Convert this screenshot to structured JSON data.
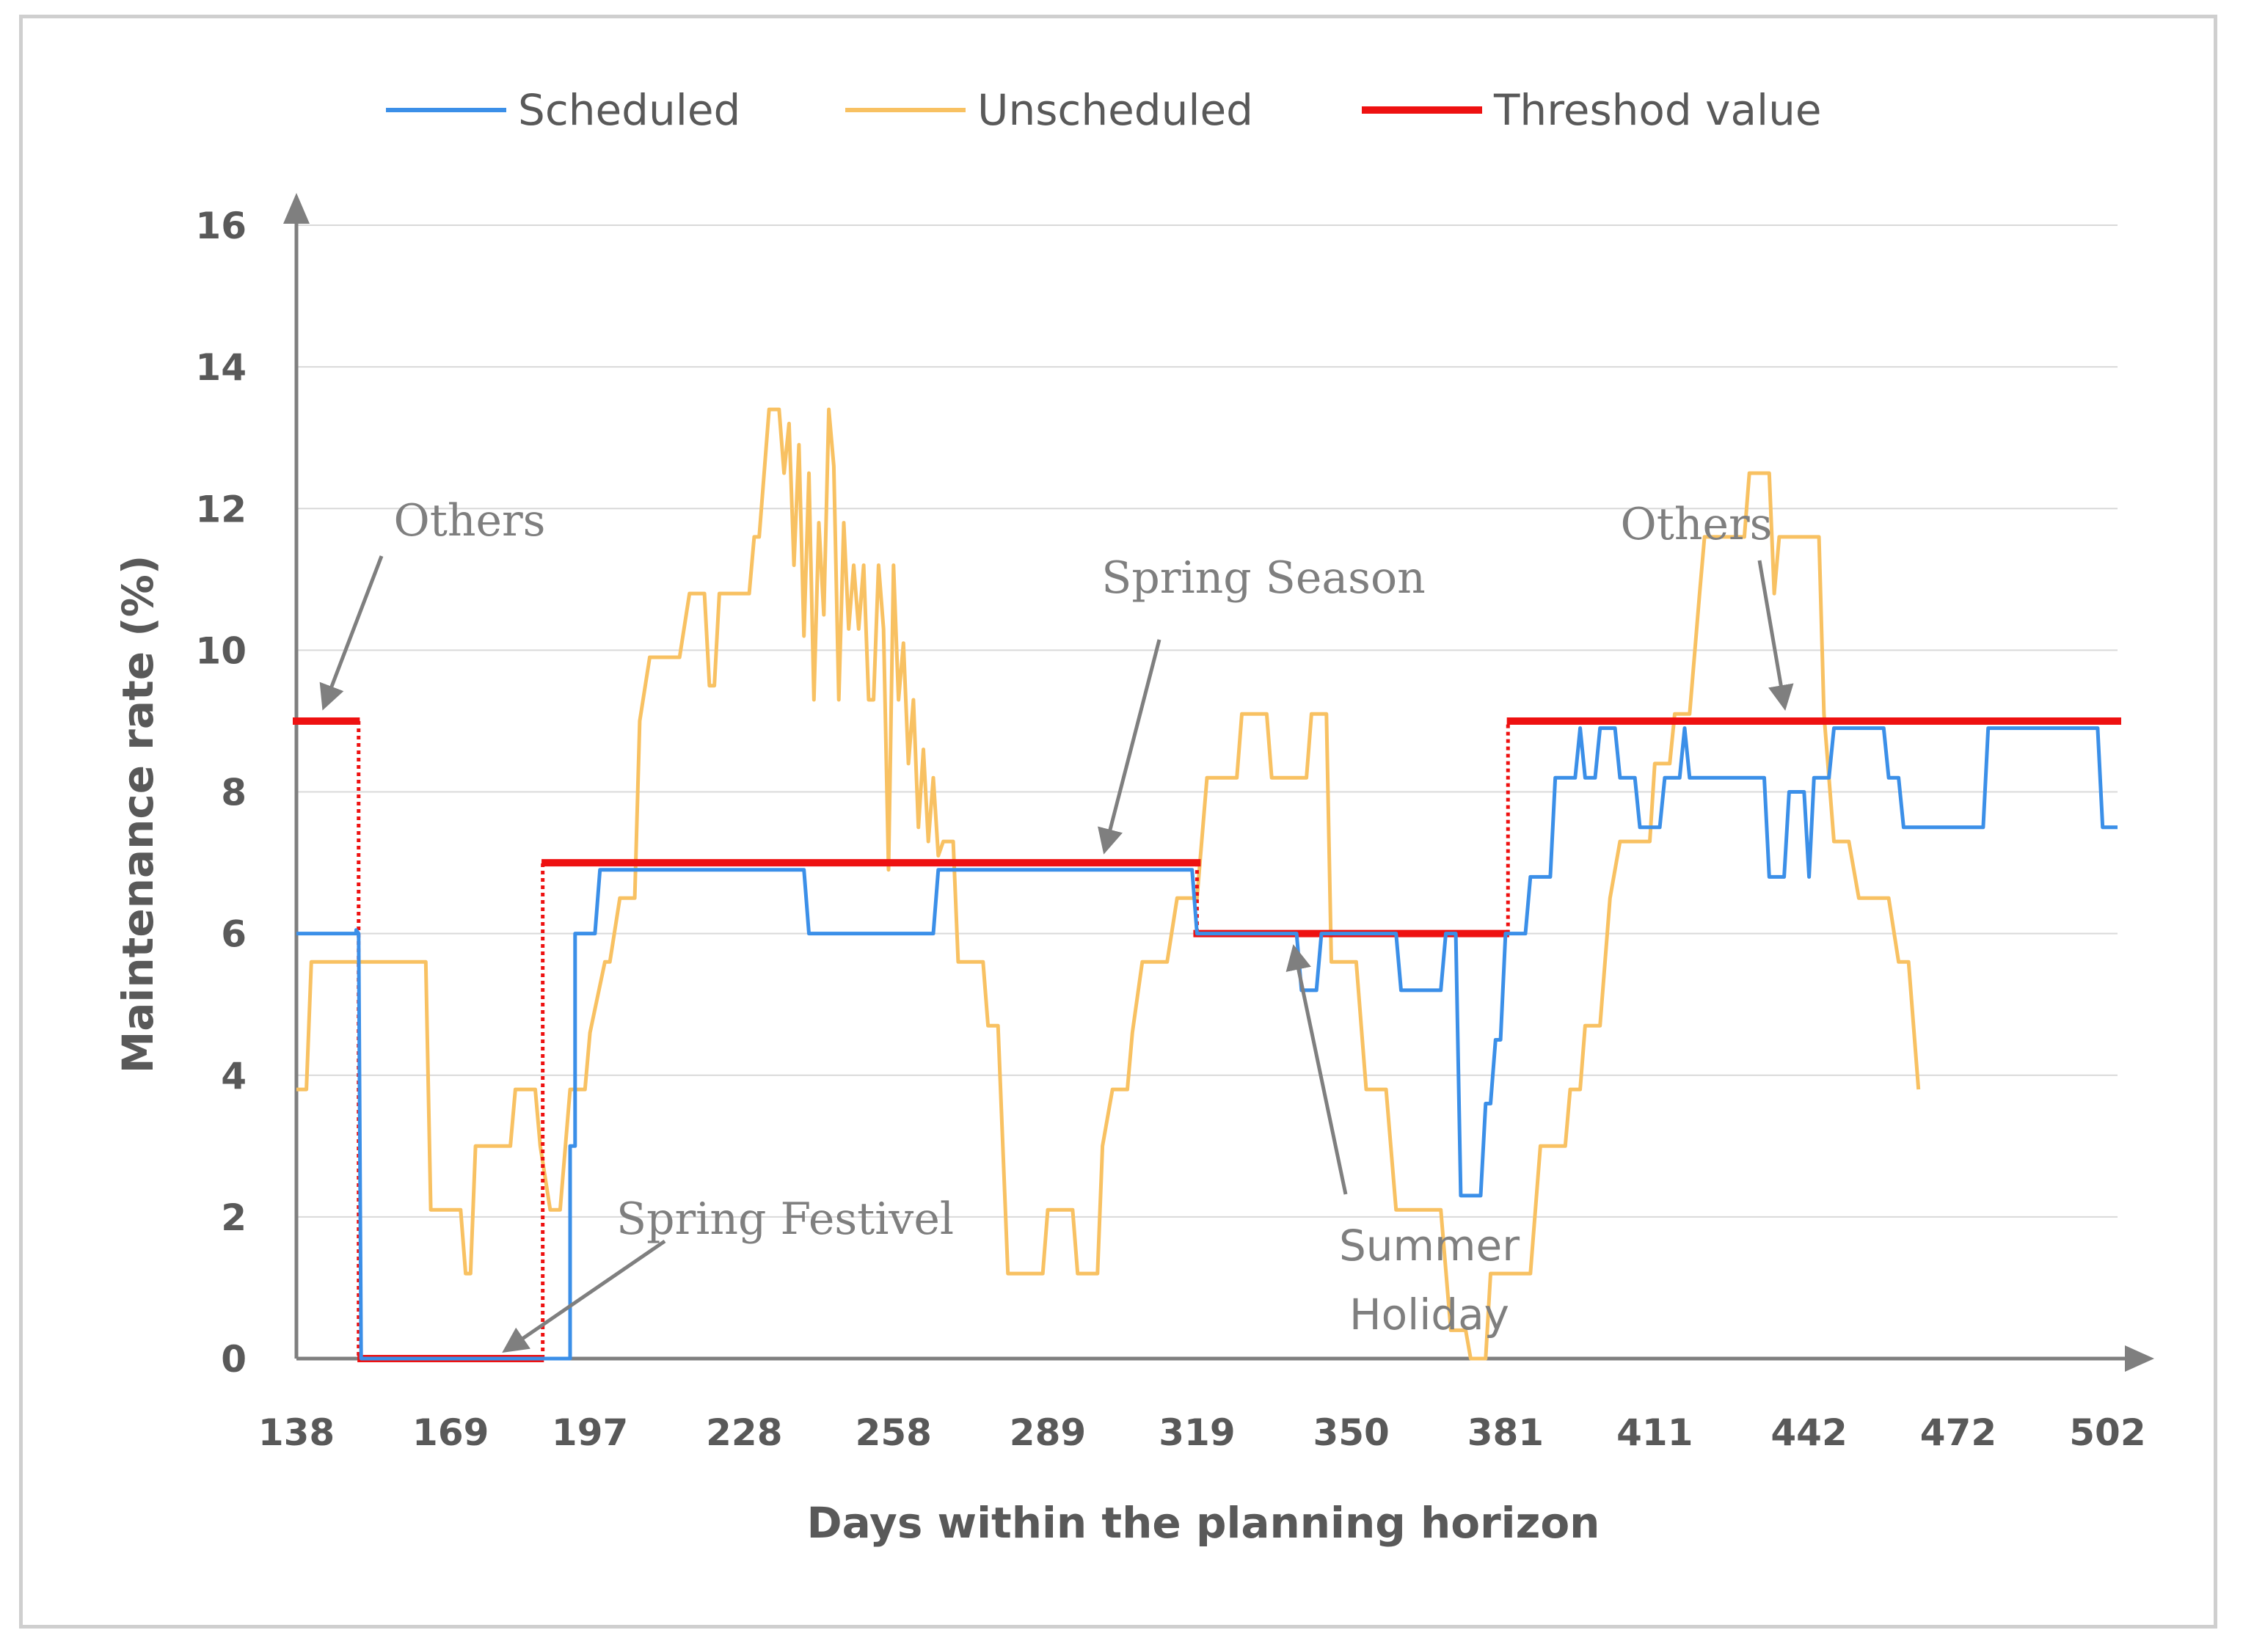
{
  "colors": {
    "scheduled": "#3b8fe8",
    "unscheduled": "#f8c162",
    "threshold": "#ee1111",
    "threshold_drop": "#ee1111",
    "axis": "#7f7f7f",
    "grid": "#d9d9d9",
    "text": "#595959",
    "annotation": "#7f7f7f"
  },
  "chart_data": {
    "type": "line",
    "xlabel": "Days within the planning horizon",
    "ylabel": "Maintenance rate (%)",
    "xlim": [
      138,
      504
    ],
    "ylim": [
      0,
      16
    ],
    "x_ticks": [
      "138",
      "169",
      "197",
      "228",
      "258",
      "289",
      "319",
      "350",
      "381",
      "411",
      "442",
      "472",
      "502"
    ],
    "y_ticks": [
      "0",
      "2",
      "4",
      "6",
      "8",
      "10",
      "12",
      "14",
      "16"
    ],
    "grid": "horizontal",
    "legend_position": "top",
    "series": [
      {
        "name": "Scheduled",
        "color_key": "scheduled",
        "points": [
          [
            138,
            6.0
          ],
          [
            150,
            6.0
          ],
          [
            150,
            6.05
          ],
          [
            150.5,
            6.0
          ],
          [
            151,
            0
          ],
          [
            193,
            0
          ],
          [
            193,
            3.0
          ],
          [
            194,
            3.0
          ],
          [
            194,
            6.0
          ],
          [
            198,
            6.0
          ],
          [
            199,
            6.9
          ],
          [
            240,
            6.9
          ],
          [
            241,
            6.0
          ],
          [
            266,
            6.0
          ],
          [
            267,
            6.9
          ],
          [
            318,
            6.9
          ],
          [
            319,
            6.0
          ],
          [
            339,
            6.0
          ],
          [
            340,
            5.2
          ],
          [
            343,
            5.2
          ],
          [
            344,
            6.0
          ],
          [
            359,
            6.0
          ],
          [
            360,
            5.2
          ],
          [
            368,
            5.2
          ],
          [
            369,
            6.0
          ],
          [
            371,
            6.0
          ],
          [
            372,
            2.3
          ],
          [
            376,
            2.3
          ],
          [
            377,
            3.6
          ],
          [
            378,
            3.6
          ],
          [
            379,
            4.5
          ],
          [
            380,
            4.5
          ],
          [
            381,
            6.0
          ],
          [
            385,
            6.0
          ],
          [
            386,
            6.8
          ],
          [
            390,
            6.8
          ],
          [
            391,
            8.2
          ],
          [
            395,
            8.2
          ],
          [
            396,
            8.9
          ],
          [
            397,
            8.2
          ],
          [
            399,
            8.2
          ],
          [
            400,
            8.9
          ],
          [
            403,
            8.9
          ],
          [
            404,
            8.2
          ],
          [
            407,
            8.2
          ],
          [
            408,
            7.5
          ],
          [
            412,
            7.5
          ],
          [
            413,
            8.2
          ],
          [
            416,
            8.2
          ],
          [
            417,
            8.9
          ],
          [
            418,
            8.2
          ],
          [
            433,
            8.2
          ],
          [
            434,
            6.8
          ],
          [
            437,
            6.8
          ],
          [
            438,
            8.0
          ],
          [
            441,
            8.0
          ],
          [
            442,
            6.8
          ],
          [
            443,
            8.2
          ],
          [
            446,
            8.2
          ],
          [
            447,
            8.9
          ],
          [
            457,
            8.9
          ],
          [
            458,
            8.2
          ],
          [
            460,
            8.2
          ],
          [
            461,
            7.5
          ],
          [
            477,
            7.5
          ],
          [
            478,
            8.9
          ],
          [
            500,
            8.9
          ],
          [
            501,
            7.5
          ],
          [
            504,
            7.5
          ]
        ]
      },
      {
        "name": "Unscheduled",
        "color_key": "unscheduled",
        "points": [
          [
            138,
            3.8
          ],
          [
            140,
            3.8
          ],
          [
            141,
            5.6
          ],
          [
            164,
            5.6
          ],
          [
            165,
            2.1
          ],
          [
            171,
            2.1
          ],
          [
            172,
            1.2
          ],
          [
            173,
            1.2
          ],
          [
            174,
            3.0
          ],
          [
            181,
            3.0
          ],
          [
            182,
            3.8
          ],
          [
            186,
            3.8
          ],
          [
            187,
            3.0
          ],
          [
            189,
            2.1
          ],
          [
            191,
            2.1
          ],
          [
            193,
            3.8
          ],
          [
            196,
            3.8
          ],
          [
            197,
            4.6
          ],
          [
            200,
            5.6
          ],
          [
            201,
            5.6
          ],
          [
            203,
            6.5
          ],
          [
            206,
            6.5
          ],
          [
            207,
            9.0
          ],
          [
            209,
            9.9
          ],
          [
            215,
            9.9
          ],
          [
            217,
            10.8
          ],
          [
            220,
            10.8
          ],
          [
            221,
            9.5
          ],
          [
            222,
            9.5
          ],
          [
            223,
            10.8
          ],
          [
            229,
            10.8
          ],
          [
            230,
            11.6
          ],
          [
            231,
            11.6
          ],
          [
            233,
            13.4
          ],
          [
            235,
            13.4
          ],
          [
            236,
            12.5
          ],
          [
            237,
            13.2
          ],
          [
            238,
            11.2
          ],
          [
            239,
            12.9
          ],
          [
            240,
            10.2
          ],
          [
            241,
            12.5
          ],
          [
            242,
            9.3
          ],
          [
            243,
            11.8
          ],
          [
            244,
            10.5
          ],
          [
            245,
            13.4
          ],
          [
            246,
            12.6
          ],
          [
            247,
            9.3
          ],
          [
            248,
            11.8
          ],
          [
            249,
            10.3
          ],
          [
            250,
            11.2
          ],
          [
            251,
            10.3
          ],
          [
            252,
            11.2
          ],
          [
            253,
            9.3
          ],
          [
            254,
            9.3
          ],
          [
            255,
            11.2
          ],
          [
            256,
            10.3
          ],
          [
            257,
            6.9
          ],
          [
            258,
            11.2
          ],
          [
            259,
            9.3
          ],
          [
            260,
            10.1
          ],
          [
            261,
            8.4
          ],
          [
            262,
            9.3
          ],
          [
            263,
            7.5
          ],
          [
            264,
            8.6
          ],
          [
            265,
            7.3
          ],
          [
            266,
            8.2
          ],
          [
            267,
            7.1
          ],
          [
            268,
            7.3
          ],
          [
            270,
            7.3
          ],
          [
            271,
            5.6
          ],
          [
            276,
            5.6
          ],
          [
            277,
            4.7
          ],
          [
            279,
            4.7
          ],
          [
            281,
            1.2
          ],
          [
            288,
            1.2
          ],
          [
            289,
            2.1
          ],
          [
            294,
            2.1
          ],
          [
            295,
            1.2
          ],
          [
            299,
            1.2
          ],
          [
            300,
            3.0
          ],
          [
            302,
            3.8
          ],
          [
            305,
            3.8
          ],
          [
            306,
            4.6
          ],
          [
            308,
            5.6
          ],
          [
            313,
            5.6
          ],
          [
            315,
            6.5
          ],
          [
            319,
            6.5
          ],
          [
            321,
            8.2
          ],
          [
            327,
            8.2
          ],
          [
            328,
            9.1
          ],
          [
            333,
            9.1
          ],
          [
            334,
            8.2
          ],
          [
            341,
            8.2
          ],
          [
            342,
            9.1
          ],
          [
            345,
            9.1
          ],
          [
            346,
            5.6
          ],
          [
            351,
            5.6
          ],
          [
            353,
            3.8
          ],
          [
            357,
            3.8
          ],
          [
            359,
            2.1
          ],
          [
            368,
            2.1
          ],
          [
            370,
            0.4
          ],
          [
            373,
            0.4
          ],
          [
            374,
            0
          ],
          [
            377,
            0
          ],
          [
            378,
            1.2
          ],
          [
            386,
            1.2
          ],
          [
            388,
            3.0
          ],
          [
            393,
            3.0
          ],
          [
            394,
            3.8
          ],
          [
            396,
            3.8
          ],
          [
            397,
            4.7
          ],
          [
            400,
            4.7
          ],
          [
            402,
            6.5
          ],
          [
            404,
            7.3
          ],
          [
            410,
            7.3
          ],
          [
            411,
            8.4
          ],
          [
            414,
            8.4
          ],
          [
            415,
            9.1
          ],
          [
            418,
            9.1
          ],
          [
            420,
            10.8
          ],
          [
            421,
            11.6
          ],
          [
            429,
            11.6
          ],
          [
            430,
            12.5
          ],
          [
            434,
            12.5
          ],
          [
            435,
            10.8
          ],
          [
            436,
            11.6
          ],
          [
            444,
            11.6
          ],
          [
            445,
            9.1
          ],
          [
            447,
            7.3
          ],
          [
            450,
            7.3
          ],
          [
            452,
            6.5
          ],
          [
            458,
            6.5
          ],
          [
            460,
            5.6
          ],
          [
            462,
            5.6
          ],
          [
            464,
            3.8
          ]
        ]
      },
      {
        "name": "Threshod value",
        "color_key": "threshold",
        "segments": [
          {
            "x0": 138,
            "x1": 150,
            "y": 9
          },
          {
            "x0": 151,
            "x1": 187,
            "y": 0
          },
          {
            "x0": 188,
            "x1": 319,
            "y": 7
          },
          {
            "x0": 319,
            "x1": 381,
            "y": 6
          },
          {
            "x0": 382,
            "x1": 504,
            "y": 9
          }
        ],
        "drops": [
          {
            "x": 150.5,
            "y0": 9,
            "y1": 0
          },
          {
            "x": 187.5,
            "y0": 0,
            "y1": 7
          },
          {
            "x": 319,
            "y0": 7,
            "y1": 6
          },
          {
            "x": 381.5,
            "y0": 6,
            "y1": 9
          }
        ]
      }
    ],
    "annotations": [
      {
        "id": "others-left",
        "text": "Others",
        "anchor_x": 144,
        "anchor_y": 9.0
      },
      {
        "id": "spring-season",
        "text": "Spring Season",
        "anchor_x": 298,
        "anchor_y": 7.0
      },
      {
        "id": "others-right",
        "text": "Others",
        "anchor_x": 426,
        "anchor_y": 9.0
      },
      {
        "id": "spring-festival",
        "text": "Spring Festivel",
        "anchor_x": 170,
        "anchor_y": 0
      },
      {
        "id": "summer-holiday",
        "text_lines": [
          "Summer",
          "Holiday"
        ],
        "anchor_x": 344,
        "anchor_y": 6.0
      }
    ]
  },
  "legend": {
    "items": [
      {
        "label": "Scheduled",
        "color_key": "scheduled"
      },
      {
        "label": "Unscheduled",
        "color_key": "unscheduled"
      },
      {
        "label": "Threshod value",
        "color_key": "threshold"
      }
    ]
  }
}
